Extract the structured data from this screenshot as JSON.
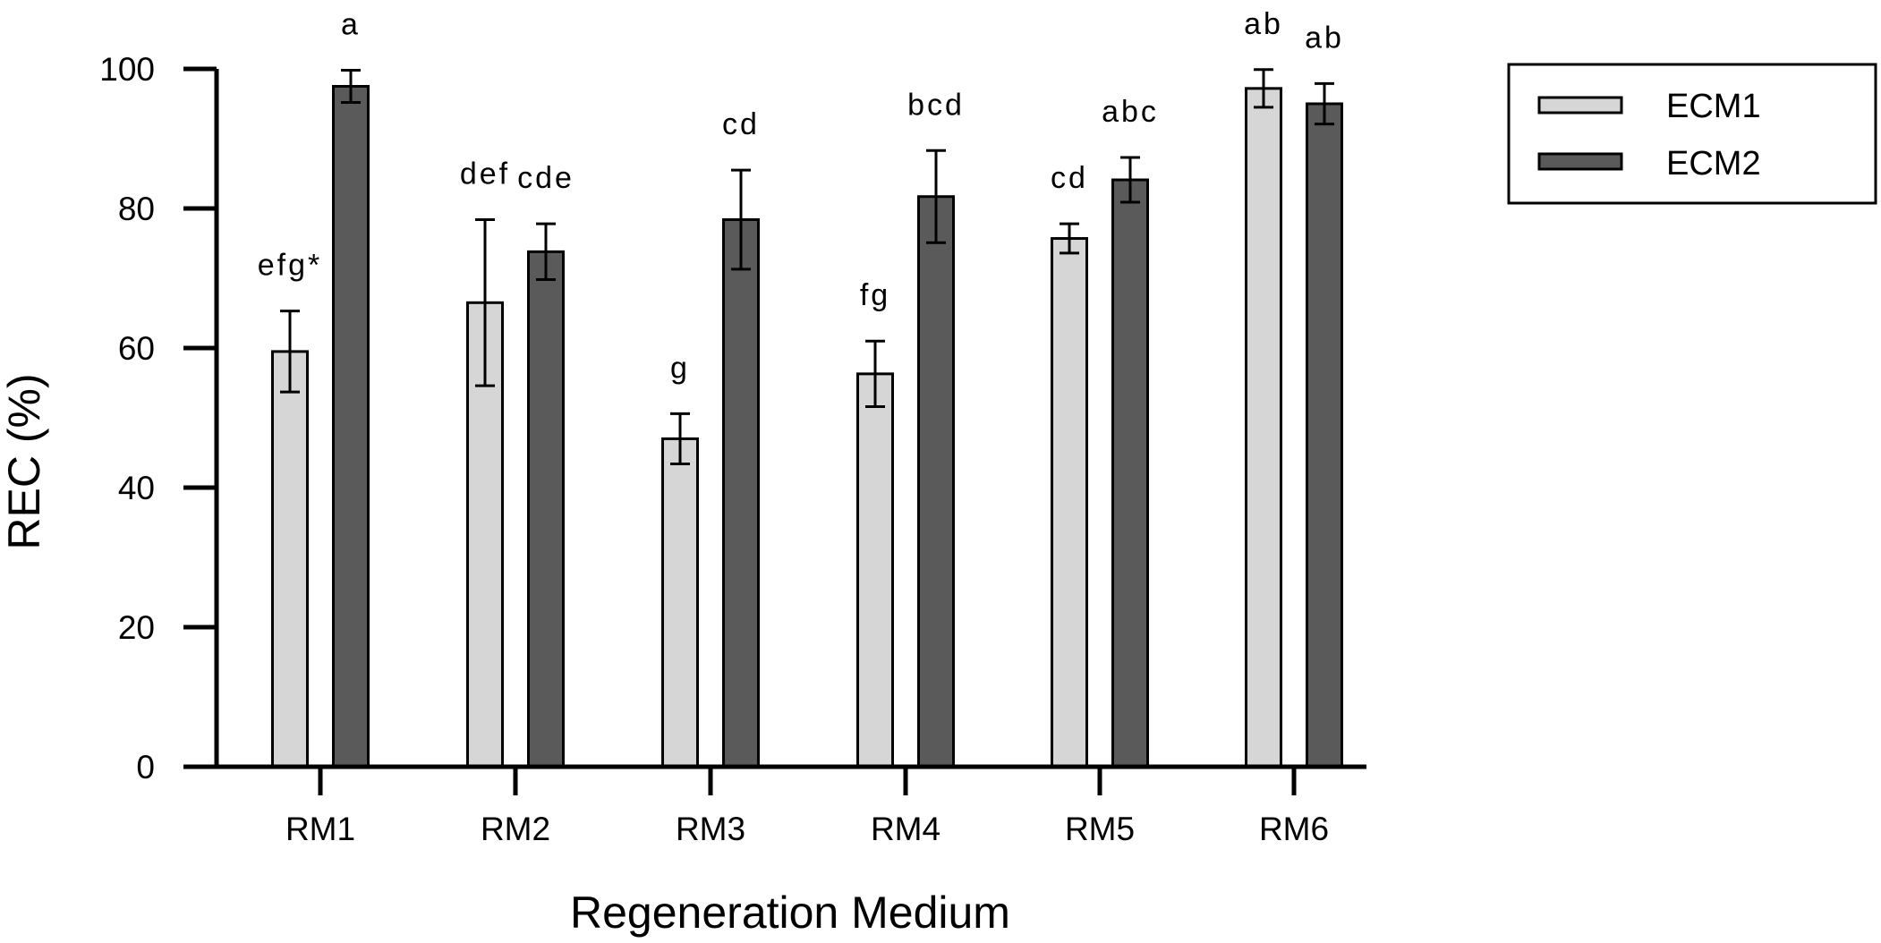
{
  "chart_data": {
    "type": "bar",
    "title": "",
    "xlabel": "Regeneration Medium",
    "ylabel": "REC (%)",
    "ylim": [
      0,
      100
    ],
    "yticks": [
      0,
      20,
      40,
      60,
      80,
      100
    ],
    "categories": [
      "RM1",
      "RM2",
      "RM3",
      "RM4",
      "RM5",
      "RM6"
    ],
    "series": [
      {
        "name": "ECM1",
        "color": "#d6d6d6",
        "values": [
          59.5,
          66.5,
          47.0,
          56.3,
          75.7,
          97.2
        ],
        "errors": [
          5.8,
          11.9,
          3.6,
          4.7,
          2.1,
          2.7
        ],
        "labels": [
          "efg*",
          "def",
          "g",
          "fg",
          "cd",
          "ab"
        ]
      },
      {
        "name": "ECM2",
        "color": "#5a5a5a",
        "values": [
          97.5,
          73.8,
          78.4,
          81.7,
          84.1,
          95.0
        ],
        "errors": [
          2.3,
          4.0,
          7.1,
          6.6,
          3.2,
          2.9
        ],
        "labels": [
          "a",
          "cde",
          "cd",
          "bcd",
          "abc",
          "ab"
        ]
      }
    ],
    "legend": {
      "position": "top-right"
    }
  }
}
